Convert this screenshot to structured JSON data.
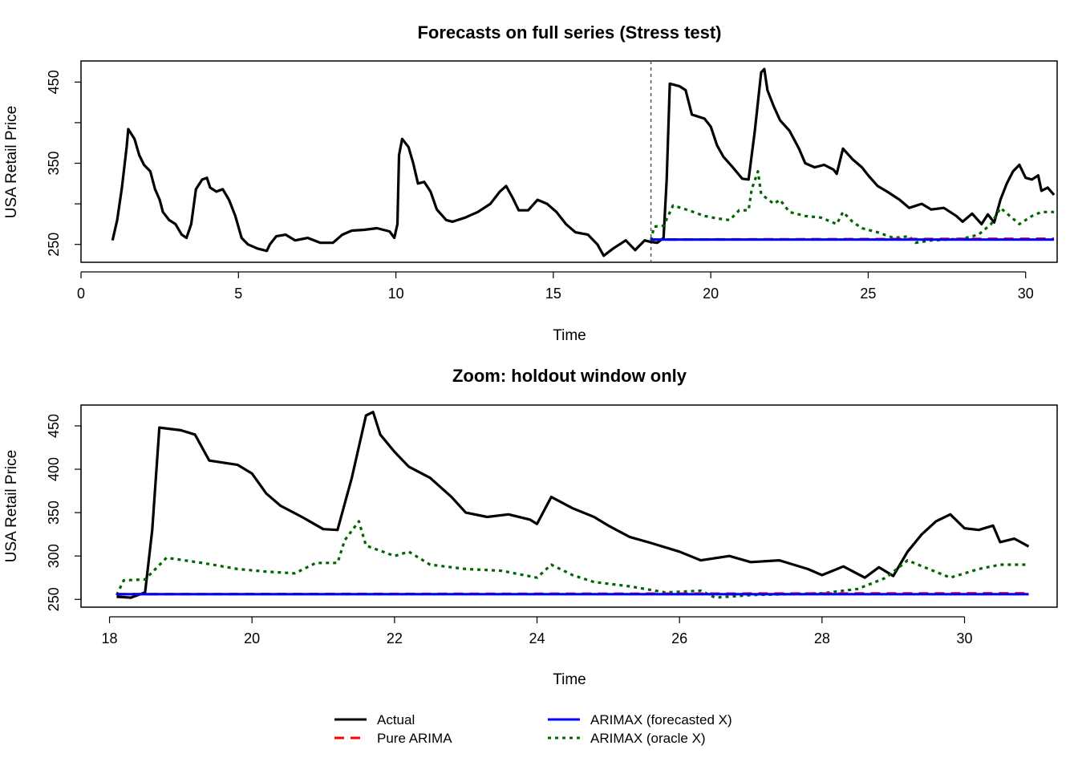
{
  "chart_data": [
    {
      "type": "line",
      "title": "Forecasts on full series (Stress test)",
      "xlabel": "Time",
      "ylabel": "USA Retail Price",
      "xlim": [
        0,
        31
      ],
      "ylim": [
        228,
        476
      ],
      "xticks": [
        0,
        5,
        10,
        15,
        20,
        25,
        30
      ],
      "yticks": [
        250,
        300,
        350,
        400,
        450
      ],
      "ytick_labels": [
        "250",
        "",
        "350",
        "",
        "450"
      ],
      "forecast_origin": 18.1,
      "show_history": true
    },
    {
      "type": "line",
      "title": "Zoom: holdout window only",
      "xlabel": "Time",
      "ylabel": "USA Retail Price",
      "xlim": [
        17.6,
        31.3
      ],
      "ylim": [
        241,
        474
      ],
      "xticks": [
        18,
        20,
        22,
        24,
        26,
        28,
        30
      ],
      "yticks": [
        250,
        300,
        350,
        400,
        450
      ],
      "ytick_labels": [
        "250",
        "300",
        "350",
        "400",
        "450"
      ],
      "show_history": false
    }
  ],
  "series": {
    "actual": {
      "name": "Actual",
      "color": "#000000",
      "points": [
        [
          1.0,
          255
        ],
        [
          1.15,
          280
        ],
        [
          1.3,
          320
        ],
        [
          1.45,
          370
        ],
        [
          1.5,
          392
        ],
        [
          1.7,
          380
        ],
        [
          1.85,
          360
        ],
        [
          2.0,
          348
        ],
        [
          2.2,
          340
        ],
        [
          2.35,
          318
        ],
        [
          2.5,
          305
        ],
        [
          2.6,
          290
        ],
        [
          2.8,
          280
        ],
        [
          3.0,
          275
        ],
        [
          3.2,
          262
        ],
        [
          3.35,
          258
        ],
        [
          3.5,
          275
        ],
        [
          3.65,
          318
        ],
        [
          3.85,
          330
        ],
        [
          4.0,
          332
        ],
        [
          4.1,
          320
        ],
        [
          4.3,
          315
        ],
        [
          4.5,
          318
        ],
        [
          4.7,
          305
        ],
        [
          4.9,
          285
        ],
        [
          5.1,
          258
        ],
        [
          5.3,
          250
        ],
        [
          5.6,
          245
        ],
        [
          5.9,
          242
        ],
        [
          6.0,
          250
        ],
        [
          6.2,
          260
        ],
        [
          6.5,
          262
        ],
        [
          6.8,
          255
        ],
        [
          7.2,
          258
        ],
        [
          7.6,
          252
        ],
        [
          8.0,
          252
        ],
        [
          8.3,
          262
        ],
        [
          8.6,
          267
        ],
        [
          9.0,
          268
        ],
        [
          9.4,
          270
        ],
        [
          9.8,
          266
        ],
        [
          9.95,
          258
        ],
        [
          10.05,
          275
        ],
        [
          10.1,
          360
        ],
        [
          10.2,
          380
        ],
        [
          10.4,
          370
        ],
        [
          10.55,
          350
        ],
        [
          10.7,
          325
        ],
        [
          10.9,
          327
        ],
        [
          11.1,
          315
        ],
        [
          11.3,
          293
        ],
        [
          11.6,
          280
        ],
        [
          11.8,
          278
        ],
        [
          12.2,
          283
        ],
        [
          12.6,
          290
        ],
        [
          13.0,
          300
        ],
        [
          13.3,
          315
        ],
        [
          13.5,
          322
        ],
        [
          13.7,
          308
        ],
        [
          13.9,
          292
        ],
        [
          14.2,
          292
        ],
        [
          14.5,
          305
        ],
        [
          14.8,
          300
        ],
        [
          15.1,
          290
        ],
        [
          15.4,
          275
        ],
        [
          15.7,
          265
        ],
        [
          16.1,
          262
        ],
        [
          16.4,
          250
        ],
        [
          16.6,
          236
        ],
        [
          16.9,
          245
        ],
        [
          17.3,
          255
        ],
        [
          17.6,
          243
        ],
        [
          17.9,
          255
        ],
        [
          18.1,
          253
        ],
        [
          18.3,
          252
        ],
        [
          18.5,
          258
        ],
        [
          18.6,
          330
        ],
        [
          18.7,
          448
        ],
        [
          19.0,
          445
        ],
        [
          19.2,
          440
        ],
        [
          19.4,
          410
        ],
        [
          19.8,
          405
        ],
        [
          20.0,
          395
        ],
        [
          20.2,
          372
        ],
        [
          20.4,
          358
        ],
        [
          20.7,
          345
        ],
        [
          21.0,
          331
        ],
        [
          21.2,
          330
        ],
        [
          21.4,
          390
        ],
        [
          21.6,
          462
        ],
        [
          21.7,
          466
        ],
        [
          21.8,
          440
        ],
        [
          22.0,
          420
        ],
        [
          22.2,
          403
        ],
        [
          22.5,
          390
        ],
        [
          22.8,
          368
        ],
        [
          23.0,
          350
        ],
        [
          23.3,
          345
        ],
        [
          23.6,
          348
        ],
        [
          23.9,
          342
        ],
        [
          24.0,
          337
        ],
        [
          24.2,
          368
        ],
        [
          24.5,
          355
        ],
        [
          24.8,
          345
        ],
        [
          25.0,
          335
        ],
        [
          25.3,
          322
        ],
        [
          25.6,
          315
        ],
        [
          26.0,
          305
        ],
        [
          26.3,
          295
        ],
        [
          26.7,
          300
        ],
        [
          27.0,
          293
        ],
        [
          27.4,
          295
        ],
        [
          27.8,
          285
        ],
        [
          28.0,
          278
        ],
        [
          28.3,
          288
        ],
        [
          28.6,
          275
        ],
        [
          28.8,
          287
        ],
        [
          29.0,
          277
        ],
        [
          29.2,
          305
        ],
        [
          29.4,
          325
        ],
        [
          29.6,
          340
        ],
        [
          29.8,
          348
        ],
        [
          30.0,
          332
        ],
        [
          30.2,
          330
        ],
        [
          30.4,
          335
        ],
        [
          30.5,
          316
        ],
        [
          30.7,
          320
        ],
        [
          30.9,
          311
        ]
      ]
    },
    "pure_arima": {
      "name": "Pure ARIMA",
      "color": "#FF0000",
      "points": [
        [
          18.1,
          256
        ],
        [
          30.9,
          257
        ]
      ]
    },
    "arimax_forecasted": {
      "name": "ARIMAX (forecasted X)",
      "color": "#0000FF",
      "points": [
        [
          18.1,
          256
        ],
        [
          30.9,
          256
        ]
      ]
    },
    "arimax_oracle": {
      "name": "ARIMAX (oracle X)",
      "color": "#006400",
      "points": [
        [
          18.1,
          255
        ],
        [
          18.2,
          272
        ],
        [
          18.5,
          273
        ],
        [
          18.8,
          298
        ],
        [
          19.3,
          292
        ],
        [
          19.8,
          285
        ],
        [
          20.2,
          282
        ],
        [
          20.6,
          280
        ],
        [
          20.9,
          292
        ],
        [
          21.2,
          292
        ],
        [
          21.3,
          318
        ],
        [
          21.5,
          340
        ],
        [
          21.6,
          312
        ],
        [
          22.0,
          300
        ],
        [
          22.2,
          305
        ],
        [
          22.5,
          290
        ],
        [
          23.0,
          285
        ],
        [
          23.5,
          283
        ],
        [
          24.0,
          275
        ],
        [
          24.2,
          290
        ],
        [
          24.5,
          278
        ],
        [
          24.8,
          270
        ],
        [
          25.3,
          265
        ],
        [
          25.8,
          258
        ],
        [
          26.3,
          260
        ],
        [
          26.5,
          252
        ],
        [
          27.0,
          255
        ],
        [
          27.5,
          256
        ],
        [
          28.0,
          257
        ],
        [
          28.5,
          262
        ],
        [
          28.9,
          275
        ],
        [
          29.2,
          295
        ],
        [
          29.5,
          285
        ],
        [
          29.8,
          275
        ],
        [
          30.2,
          285
        ],
        [
          30.5,
          290
        ],
        [
          30.9,
          290
        ]
      ]
    }
  },
  "legend": {
    "placement": "bottom-center",
    "items": [
      "Actual",
      "Pure ARIMA",
      "ARIMAX (forecasted X)",
      "ARIMAX (oracle X)"
    ]
  }
}
